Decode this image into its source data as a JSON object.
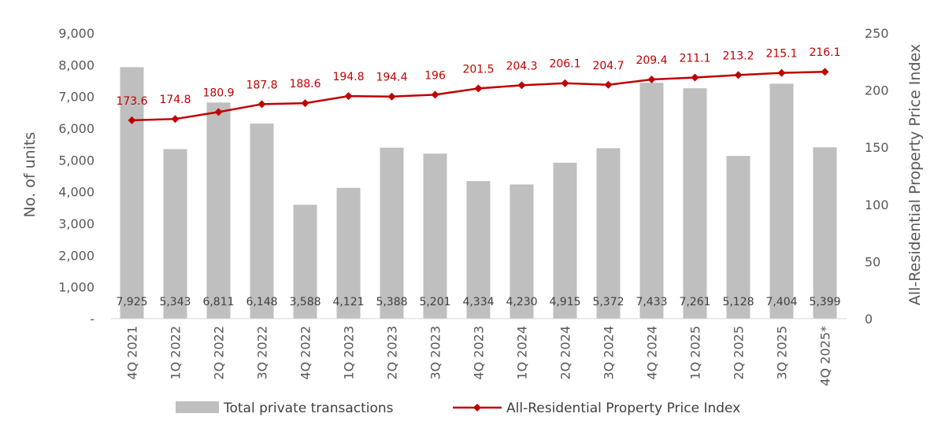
{
  "chart_data": {
    "type": "bar",
    "categories": [
      "4Q 2021",
      "1Q 2022",
      "2Q 2022",
      "3Q 2022",
      "4Q 2022",
      "1Q 2023",
      "2Q 2023",
      "3Q 2023",
      "4Q 2023",
      "1Q 2024",
      "2Q 2024",
      "3Q 2024",
      "4Q 2024",
      "1Q 2025",
      "2Q 2025",
      "3Q 2025",
      "4Q 2025*"
    ],
    "series": [
      {
        "name": "Total private transactions",
        "type": "bar",
        "axis": "left",
        "color": "#bfbfbf",
        "values": [
          7925,
          5343,
          6811,
          6148,
          3588,
          4121,
          5388,
          5201,
          4334,
          4230,
          4915,
          5372,
          7433,
          7261,
          5128,
          7404,
          5399
        ],
        "labels": [
          "7,925",
          "5,343",
          "6,811",
          "6,148",
          "3,588",
          "4,121",
          "5,388",
          "5,201",
          "4,334",
          "4,230",
          "4,915",
          "5,372",
          "7,433",
          "7,261",
          "5,128",
          "7,404",
          "5,399"
        ]
      },
      {
        "name": "All-Residential Property Price Index",
        "type": "line",
        "axis": "right",
        "color": "#c00000",
        "values": [
          173.6,
          174.8,
          180.9,
          187.8,
          188.6,
          194.8,
          194.4,
          196,
          201.5,
          204.3,
          206.1,
          204.7,
          209.4,
          211.1,
          213.2,
          215.1,
          216.1
        ],
        "labels": [
          "173.6",
          "174.8",
          "180.9",
          "187.8",
          "188.6",
          "194.8",
          "194.4",
          "196",
          "201.5",
          "204.3",
          "206.1",
          "204.7",
          "209.4",
          "211.1",
          "213.2",
          "215.1",
          "216.1"
        ]
      }
    ],
    "ylabel": "No. of units",
    "y2label": "All-Residential Property Price Index",
    "ylim": [
      0,
      9000
    ],
    "y2lim": [
      0,
      250
    ],
    "y_ticks": [
      0,
      1000,
      2000,
      3000,
      4000,
      5000,
      6000,
      7000,
      8000,
      9000
    ],
    "y_tick_labels": [
      "-",
      "1,000",
      "2,000",
      "3,000",
      "4,000",
      "5,000",
      "6,000",
      "7,000",
      "8,000",
      "9,000"
    ],
    "y2_ticks": [
      0,
      50,
      100,
      150,
      200,
      250
    ],
    "y2_tick_labels": [
      "0",
      "50",
      "100",
      "150",
      "200",
      "250"
    ],
    "legend_position": "bottom",
    "grid": false
  }
}
